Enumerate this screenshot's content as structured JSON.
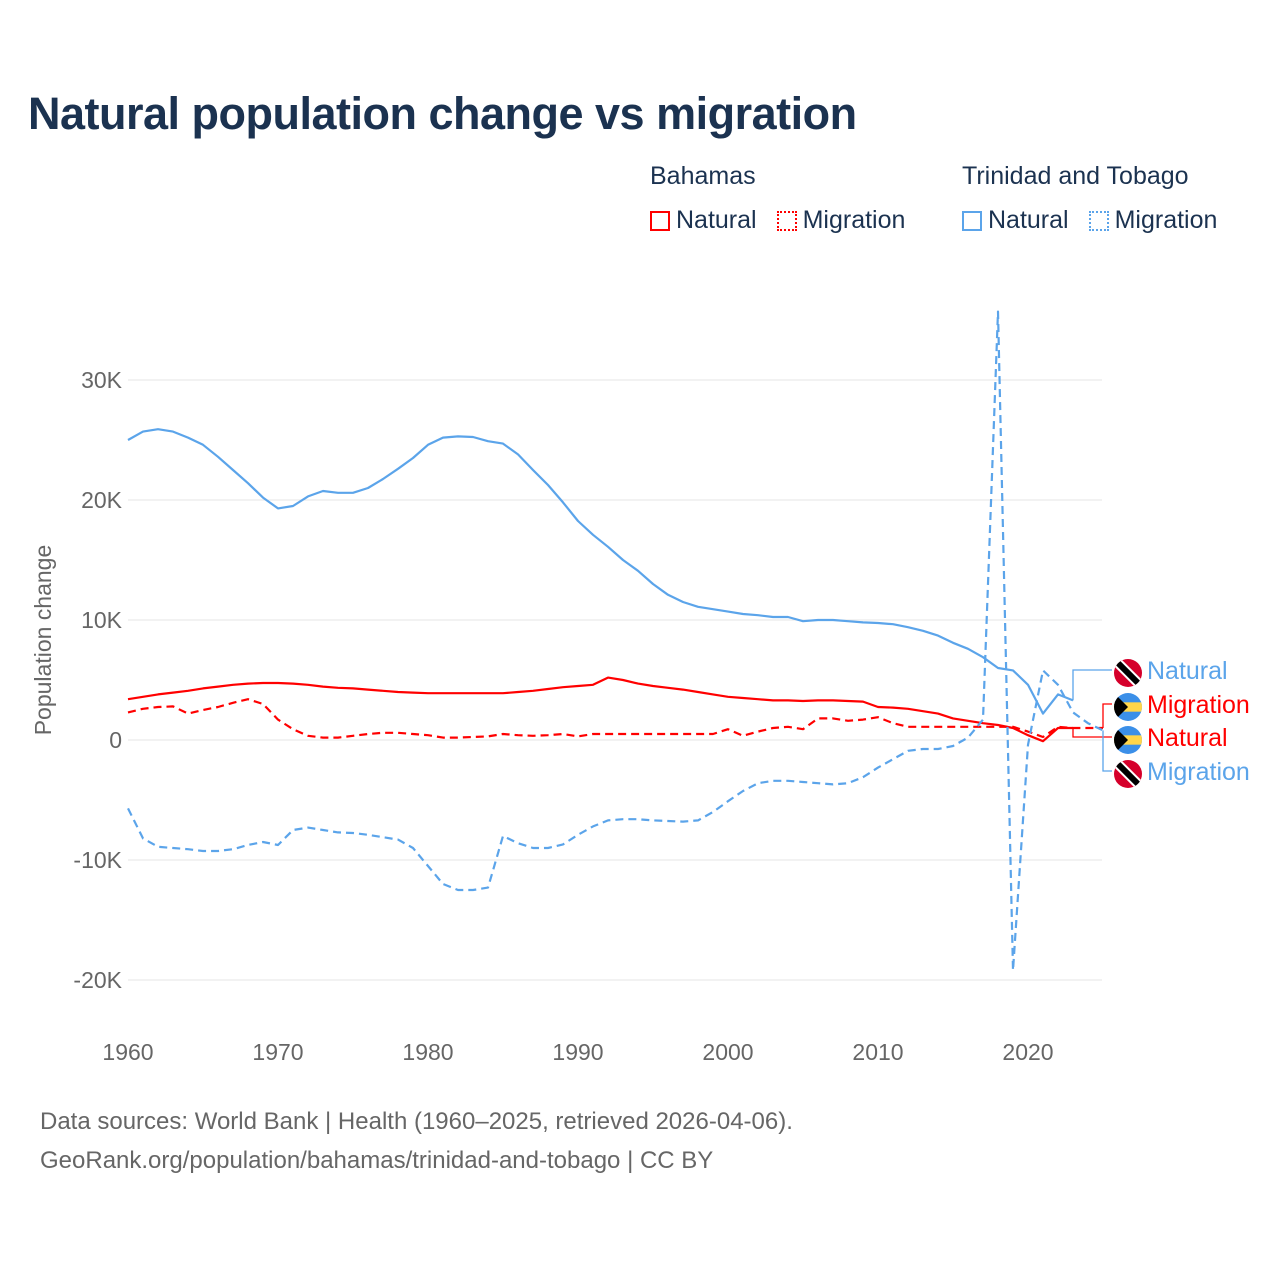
{
  "chart_data": {
    "type": "line",
    "title": "Natural population change vs migration",
    "xlabel": "",
    "ylabel": "Population change",
    "xlim": [
      1960,
      2025
    ],
    "ylim": [
      -22000,
      37000
    ],
    "x_ticks": [
      {
        "v": 1960,
        "label": "1960"
      },
      {
        "v": 1970,
        "label": "1970"
      },
      {
        "v": 1980,
        "label": "1980"
      },
      {
        "v": 1990,
        "label": "1990"
      },
      {
        "v": 2000,
        "label": "2000"
      },
      {
        "v": 2010,
        "label": "2010"
      },
      {
        "v": 2020,
        "label": "2020"
      }
    ],
    "y_ticks": [
      {
        "v": 30000,
        "label": "30K"
      },
      {
        "v": 20000,
        "label": "20K"
      },
      {
        "v": 10000,
        "label": "10K"
      },
      {
        "v": 0,
        "label": "0"
      },
      {
        "v": -10000,
        "label": "-10K"
      },
      {
        "v": -20000,
        "label": "-20K"
      }
    ],
    "grid": true,
    "legend": {
      "placement": "top-right",
      "groups": [
        {
          "country": "Bahamas",
          "color": "#ff0000",
          "items": [
            "Natural",
            "Migration"
          ]
        },
        {
          "country": "Trinidad and Tobago",
          "color": "#5ba4ea",
          "items": [
            "Natural",
            "Migration"
          ]
        }
      ]
    },
    "series": [
      {
        "name": "Trinidad and Tobago Natural",
        "label": "Natural",
        "country": "tt",
        "color": "#5ba4ea",
        "dash": false,
        "start": 1960,
        "values": [
          25000,
          25700,
          25900,
          25700,
          25200,
          24600,
          23600,
          22500,
          21400,
          20200,
          19300,
          19500,
          20300,
          20750,
          20600,
          20600,
          21000,
          21750,
          22600,
          23500,
          24600,
          25200,
          25300,
          25250,
          24900,
          24700,
          23800,
          22500,
          21250,
          19800,
          18250,
          17100,
          16100,
          15000,
          14100,
          13000,
          12100,
          11500,
          11100,
          10900,
          10700,
          10500,
          10400,
          10250,
          10250,
          9900,
          10000,
          10000,
          9900,
          9800,
          9750,
          9650,
          9400,
          9100,
          8700,
          8100,
          7600,
          6900,
          6000,
          5800,
          4600,
          2200,
          3800,
          3300
        ]
      },
      {
        "name": "Bahamas Migration",
        "label": "Migration",
        "country": "bs",
        "color": "#ff0000",
        "dash": true,
        "start": 1960,
        "values": [
          2300,
          2600,
          2750,
          2800,
          2200,
          2500,
          2750,
          3100,
          3400,
          3000,
          1700,
          900,
          350,
          200,
          200,
          350,
          500,
          600,
          600,
          500,
          400,
          200,
          200,
          250,
          300,
          500,
          400,
          350,
          400,
          500,
          300,
          500,
          500,
          500,
          500,
          500,
          500,
          500,
          500,
          500,
          900,
          350,
          700,
          1000,
          1100,
          900,
          1800,
          1800,
          1600,
          1700,
          1900,
          1400,
          1100,
          1100,
          1100,
          1100,
          1100,
          1100,
          1100,
          1100,
          700,
          250,
          1100,
          1000,
          1000,
          1000
        ]
      },
      {
        "name": "Bahamas Natural",
        "label": "Natural",
        "country": "bs",
        "color": "#ff0000",
        "dash": false,
        "start": 1960,
        "values": [
          3400,
          3600,
          3800,
          3950,
          4100,
          4300,
          4450,
          4600,
          4700,
          4750,
          4750,
          4700,
          4600,
          4450,
          4350,
          4300,
          4200,
          4100,
          4000,
          3950,
          3900,
          3900,
          3900,
          3900,
          3900,
          3900,
          4000,
          4100,
          4250,
          4400,
          4500,
          4600,
          5200,
          5000,
          4700,
          4500,
          4350,
          4200,
          4000,
          3800,
          3600,
          3500,
          3400,
          3300,
          3300,
          3250,
          3300,
          3300,
          3250,
          3200,
          2750,
          2700,
          2600,
          2400,
          2200,
          1800,
          1600,
          1400,
          1250,
          1000,
          400,
          -100,
          1000,
          1000
        ]
      },
      {
        "name": "Trinidad and Tobago Migration",
        "label": "Migration",
        "country": "tt",
        "color": "#5ba4ea",
        "dash": true,
        "start": 1960,
        "values": [
          -5700,
          -8200,
          -8900,
          -9000,
          -9100,
          -9250,
          -9250,
          -9100,
          -8750,
          -8500,
          -8750,
          -7500,
          -7300,
          -7500,
          -7700,
          -7750,
          -7900,
          -8100,
          -8300,
          -9000,
          -10500,
          -12000,
          -12500,
          -12500,
          -12300,
          -8000,
          -8600,
          -9000,
          -9000,
          -8700,
          -7900,
          -7200,
          -6700,
          -6600,
          -6600,
          -6700,
          -6750,
          -6800,
          -6700,
          -6000,
          -5100,
          -4250,
          -3600,
          -3400,
          -3400,
          -3500,
          -3600,
          -3700,
          -3600,
          -3100,
          -2300,
          -1600,
          -900,
          -750,
          -750,
          -500,
          200,
          1700,
          35700,
          -19200,
          -400,
          5800,
          4600,
          2300,
          1400,
          800
        ]
      }
    ]
  },
  "footer": {
    "line1": "Data sources: World Bank | Health (1960–2025, retrieved 2026-04-06).",
    "line2": "GeoRank.org/population/bahamas/trinidad-and-tobago | CC BY"
  }
}
